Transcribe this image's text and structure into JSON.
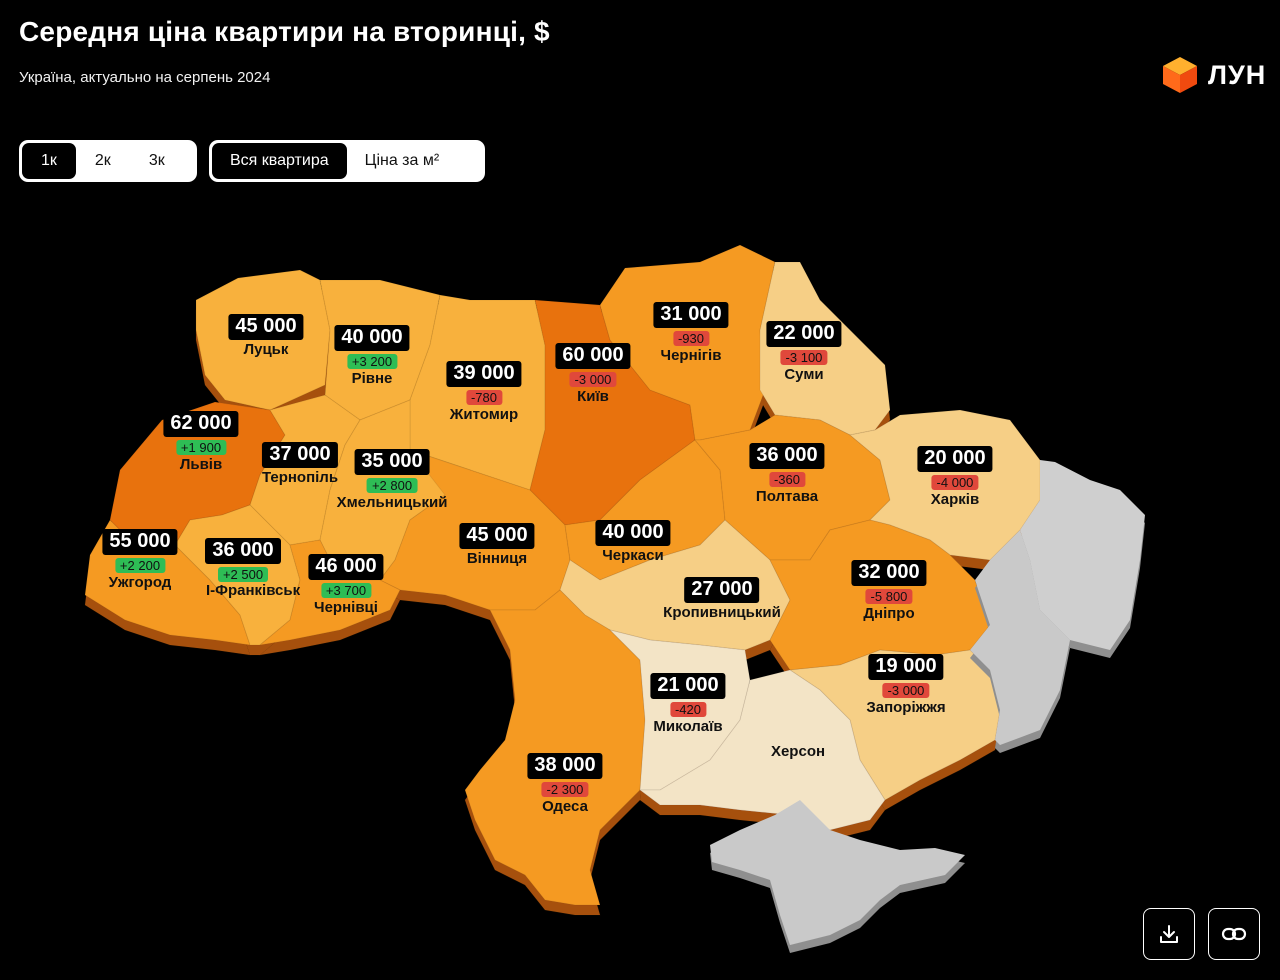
{
  "header": {
    "title": "Середня ціна квартири на вторинці, $",
    "subtitle": "Україна, актуально на серпень 2024",
    "logo_text": "ЛУН"
  },
  "room_filter": {
    "options": [
      "1к",
      "2к",
      "3к"
    ],
    "selected": "1к"
  },
  "mode_filter": {
    "options": [
      "Вся квартира",
      "Ціна за м²"
    ],
    "selected": "Вся квартира"
  },
  "regions": [
    {
      "name": "Луцьк",
      "price": "45 000",
      "change": ""
    },
    {
      "name": "Рівне",
      "price": "40 000",
      "change": "+3 200"
    },
    {
      "name": "Житомир",
      "price": "39 000",
      "change": "-780"
    },
    {
      "name": "Київ",
      "price": "60 000",
      "change": "-3 000"
    },
    {
      "name": "Чернігів",
      "price": "31 000",
      "change": "-930"
    },
    {
      "name": "Суми",
      "price": "22 000",
      "change": "-3 100"
    },
    {
      "name": "Львів",
      "price": "62 000",
      "change": "+1 900"
    },
    {
      "name": "Тернопіль",
      "price": "37 000",
      "change": ""
    },
    {
      "name": "Хмельницький",
      "price": "35 000",
      "change": "+2 800"
    },
    {
      "name": "Полтава",
      "price": "36 000",
      "change": "-360"
    },
    {
      "name": "Харків",
      "price": "20 000",
      "change": "-4 000"
    },
    {
      "name": "Ужгород",
      "price": "55 000",
      "change": "+2 200"
    },
    {
      "name": "І-Франківськ",
      "price": "36 000",
      "change": "+2 500"
    },
    {
      "name": "Чернівці",
      "price": "46 000",
      "change": "+3 700"
    },
    {
      "name": "Вінниця",
      "price": "45 000",
      "change": ""
    },
    {
      "name": "Черкаси",
      "price": "40 000",
      "change": ""
    },
    {
      "name": "Кропивницький",
      "price": "27 000",
      "change": ""
    },
    {
      "name": "Дніпро",
      "price": "32 000",
      "change": "-5 800"
    },
    {
      "name": "Запоріжжя",
      "price": "19 000",
      "change": "-3 000"
    },
    {
      "name": "Миколаїв",
      "price": "21 000",
      "change": "-420"
    },
    {
      "name": "Херсон",
      "price": "",
      "change": ""
    },
    {
      "name": "Одеса",
      "price": "38 000",
      "change": "-2 300"
    }
  ],
  "colors": {
    "very_high": "#e8720f",
    "high": "#f59a24",
    "mid": "#f8b13c",
    "low": "#f6cf86",
    "very_low": "#f3e4c6",
    "no_data": "#c9c9c9",
    "increase": "#2ebd55",
    "decrease": "#e0483b"
  },
  "actions": {
    "download_icon": "download-icon",
    "link_icon": "link-icon"
  }
}
